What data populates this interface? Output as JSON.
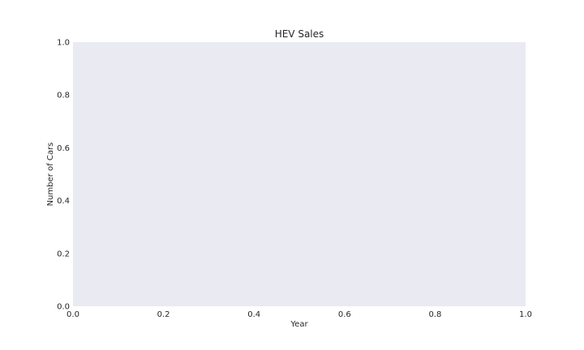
{
  "chart_data": {
    "type": "line",
    "title": "HEV Sales",
    "xlabel": "Year",
    "ylabel": "Number of Cars",
    "xlim": [
      0.0,
      1.0
    ],
    "ylim": [
      0.0,
      1.0
    ],
    "x_ticks": [
      "0.0",
      "0.2",
      "0.4",
      "0.6",
      "0.8",
      "1.0"
    ],
    "y_ticks": [
      "0.0",
      "0.2",
      "0.4",
      "0.6",
      "0.8",
      "1.0"
    ],
    "series": [],
    "grid": false,
    "legend": "none",
    "colors": {
      "plot_background": "#eaeaf2",
      "text": "#262626",
      "figure_background": "#ffffff"
    }
  }
}
